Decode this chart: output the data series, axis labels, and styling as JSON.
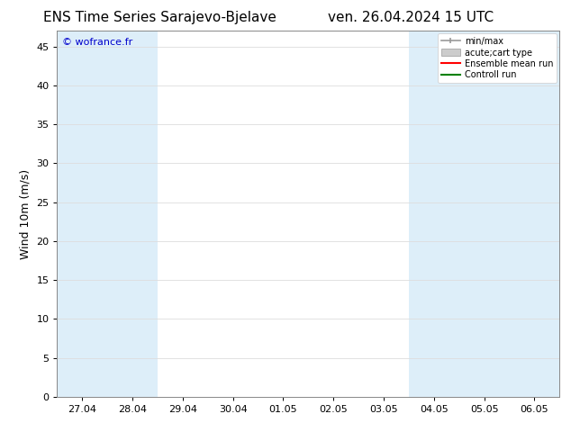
{
  "title_left": "ENS Time Series Sarajevo-Bjelave",
  "title_right": "ven. 26.04.2024 15 UTC",
  "ylabel": "Wind 10m (m/s)",
  "watermark": "© wofrance.fr",
  "background_color": "#ffffff",
  "plot_bg_color": "#ffffff",
  "ylim": [
    0,
    47
  ],
  "yticks": [
    0,
    5,
    10,
    15,
    20,
    25,
    30,
    35,
    40,
    45
  ],
  "xtick_labels": [
    "27.04",
    "28.04",
    "29.04",
    "30.04",
    "01.05",
    "02.05",
    "03.05",
    "04.05",
    "05.05",
    "06.05"
  ],
  "xtick_positions": [
    0,
    1,
    2,
    3,
    4,
    5,
    6,
    7,
    8,
    9
  ],
  "x_min": -0.5,
  "x_max": 9.5,
  "shaded_bands": [
    {
      "x_start": -0.5,
      "x_end": 0.5,
      "color": "#ddeef9"
    },
    {
      "x_start": 0.5,
      "x_end": 1.5,
      "color": "#ddeef9"
    },
    {
      "x_start": 6.5,
      "x_end": 7.5,
      "color": "#ddeef9"
    },
    {
      "x_start": 7.5,
      "x_end": 8.5,
      "color": "#ddeef9"
    },
    {
      "x_start": 8.5,
      "x_end": 9.5,
      "color": "#ddeef9"
    }
  ],
  "legend_minmax_color": "#999999",
  "legend_acute_color": "#cccccc",
  "legend_ens_color": "#ff0000",
  "legend_ctrl_color": "#008000",
  "title_fontsize": 11,
  "tick_fontsize": 8,
  "label_fontsize": 9,
  "watermark_color": "#0000cc",
  "watermark_fontsize": 8,
  "spine_color": "#888888",
  "grid_color": "#dddddd"
}
